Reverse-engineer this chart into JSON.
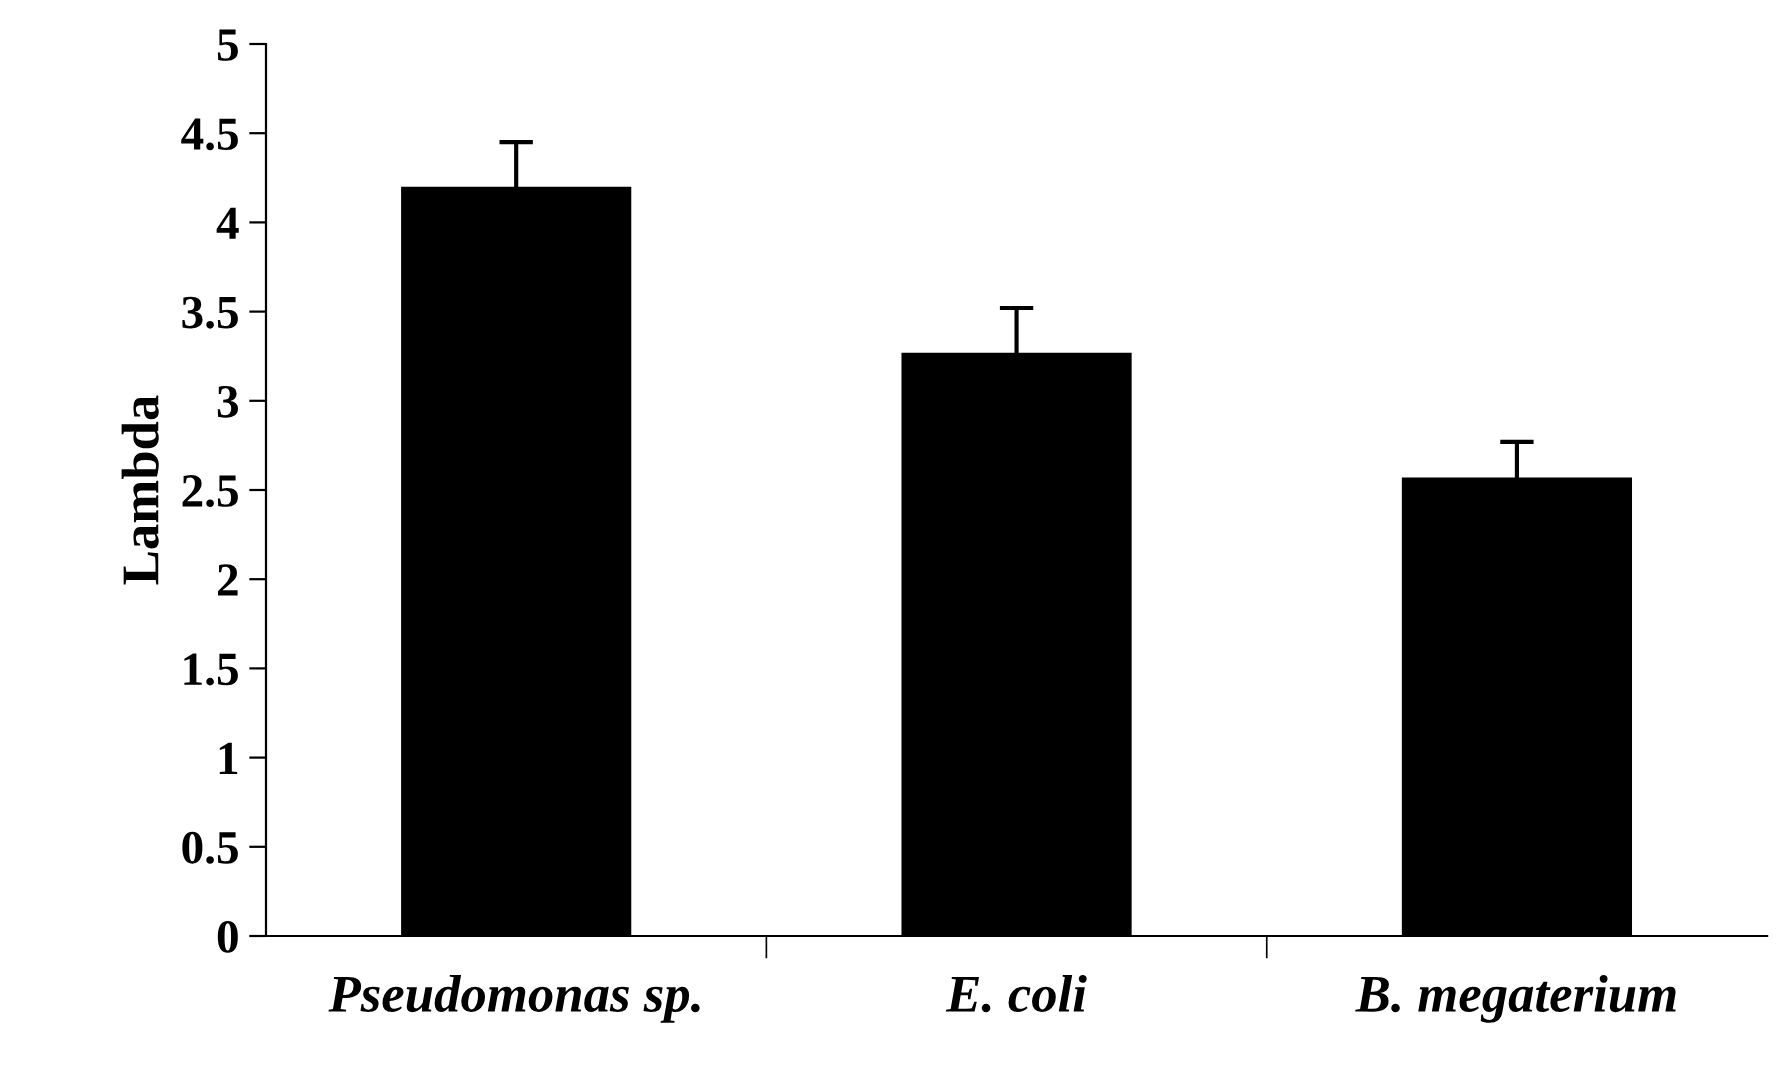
{
  "chart_data": {
    "type": "bar",
    "ylabel": "Lambda",
    "categories": [
      "Pseudomonas sp.",
      "E. coli",
      "B. megaterium"
    ],
    "values": [
      4.2,
      3.27,
      2.57
    ],
    "errors": [
      0.25,
      0.25,
      0.2
    ],
    "color": "#000000",
    "ylim": [
      0,
      5
    ],
    "yticks": [
      0,
      0.5,
      1,
      1.5,
      2,
      2.5,
      3,
      3.5,
      4,
      4.5,
      5
    ],
    "grid": false,
    "legend": false
  }
}
